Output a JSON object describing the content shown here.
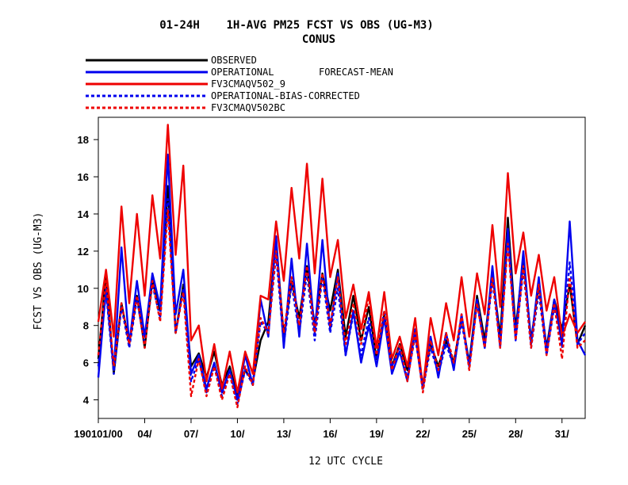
{
  "chart_data": {
    "type": "line",
    "title": "01-24H    1H-AVG PM25 FCST VS OBS (UG-M3)",
    "subtitle": "CONUS",
    "xlabel": "12 UTC CYCLE",
    "ylabel": "FCST VS OBS (UG-M3)",
    "legend_note": "FORECAST-MEAN",
    "legend_position": "top-left",
    "grid": false,
    "xlim": [
      1,
      32.5
    ],
    "ylim": [
      3,
      19.2
    ],
    "yticks": [
      4,
      6,
      8,
      10,
      12,
      14,
      16,
      18
    ],
    "xticks": [
      {
        "x": 1,
        "label": "190101/00"
      },
      {
        "x": 4,
        "label": "04/"
      },
      {
        "x": 7,
        "label": "07/"
      },
      {
        "x": 10,
        "label": "10/"
      },
      {
        "x": 13,
        "label": "13/"
      },
      {
        "x": 16,
        "label": "16/"
      },
      {
        "x": 19,
        "label": "19/"
      },
      {
        "x": 22,
        "label": "22/"
      },
      {
        "x": 25,
        "label": "25/"
      },
      {
        "x": 28,
        "label": "28/"
      },
      {
        "x": 31,
        "label": "31/"
      }
    ],
    "series": [
      {
        "name": "OBSERVED",
        "color": "#000000",
        "dash": "solid",
        "x": [
          1,
          1.5,
          2,
          2.5,
          3,
          3.5,
          4,
          4.5,
          5,
          5.5,
          6,
          6.5,
          7,
          7.5,
          8,
          8.5,
          9,
          9.5,
          10,
          10.5,
          11,
          11.5,
          12,
          12.5,
          13,
          13.5,
          14,
          14.5,
          15,
          15.5,
          16,
          16.5,
          17,
          17.5,
          18,
          18.5,
          19,
          19.5,
          20,
          20.5,
          21,
          21.5,
          22,
          22.5,
          23,
          23.5,
          24,
          24.5,
          25,
          25.5,
          26,
          26.5,
          27,
          27.5,
          28,
          28.5,
          29,
          29.5,
          30,
          30.5,
          31,
          31.5,
          32,
          32.5
        ],
        "y": [
          6.2,
          10.8,
          5.4,
          9.2,
          7.0,
          9.6,
          6.8,
          10.5,
          8.8,
          15.5,
          7.6,
          10.2,
          5.8,
          6.5,
          5.2,
          6.6,
          4.8,
          5.8,
          4.2,
          5.6,
          5.0,
          7.2,
          8.2,
          12.6,
          7.4,
          10.4,
          8.4,
          11.2,
          8.0,
          10.8,
          8.8,
          11.0,
          7.4,
          9.6,
          7.2,
          9.0,
          6.2,
          8.6,
          5.8,
          7.0,
          5.6,
          7.6,
          4.8,
          7.0,
          5.8,
          7.2,
          6.0,
          8.4,
          6.0,
          9.6,
          7.2,
          10.8,
          7.4,
          13.8,
          7.8,
          11.6,
          7.2,
          10.2,
          6.8,
          9.4,
          7.8,
          10.2,
          7.0,
          8.0
        ]
      },
      {
        "name": "OPERATIONAL",
        "color": "#0000ee",
        "dash": "solid",
        "x": [
          1,
          1.5,
          2,
          2.5,
          3,
          3.5,
          4,
          4.5,
          5,
          5.5,
          6,
          6.5,
          7,
          7.5,
          8,
          8.5,
          9,
          9.5,
          10,
          10.5,
          11,
          11.5,
          12,
          12.5,
          13,
          13.5,
          14,
          14.5,
          15,
          15.5,
          16,
          16.5,
          17,
          17.5,
          18,
          18.5,
          19,
          19.5,
          20,
          20.5,
          21,
          21.5,
          22,
          22.5,
          23,
          23.5,
          24,
          24.5,
          25,
          25.5,
          26,
          26.5,
          27,
          27.5,
          28,
          28.5,
          29,
          29.5,
          30,
          30.5,
          31,
          31.5,
          32,
          32.5
        ],
        "y": [
          5.2,
          10.0,
          5.6,
          12.2,
          7.0,
          10.4,
          7.4,
          10.8,
          9.0,
          17.2,
          8.6,
          11.0,
          5.4,
          6.4,
          4.6,
          6.0,
          4.4,
          5.6,
          4.0,
          6.4,
          4.8,
          9.4,
          7.4,
          12.8,
          6.8,
          11.6,
          7.4,
          12.4,
          7.6,
          12.6,
          7.8,
          10.8,
          6.4,
          8.8,
          6.0,
          8.0,
          5.8,
          8.4,
          5.4,
          6.6,
          5.0,
          7.8,
          4.6,
          7.4,
          5.2,
          7.6,
          5.6,
          8.6,
          5.8,
          9.4,
          6.8,
          11.2,
          6.8,
          13.2,
          7.4,
          12.0,
          7.0,
          10.6,
          6.6,
          9.4,
          7.0,
          13.6,
          7.2,
          6.4
        ]
      },
      {
        "name": "FV3CMAQV502_9",
        "color": "#ee0000",
        "dash": "solid",
        "x": [
          1,
          1.5,
          2,
          2.5,
          3,
          3.5,
          4,
          4.5,
          5,
          5.5,
          6,
          6.5,
          7,
          7.5,
          8,
          8.5,
          9,
          9.5,
          10,
          10.5,
          11,
          11.5,
          12,
          12.5,
          13,
          13.5,
          14,
          14.5,
          15,
          15.5,
          16,
          16.5,
          17,
          17.5,
          18,
          18.5,
          19,
          19.5,
          20,
          20.5,
          21,
          21.5,
          22,
          22.5,
          23,
          23.5,
          24,
          24.5,
          25,
          25.5,
          26,
          26.5,
          27,
          27.5,
          28,
          28.5,
          29,
          29.5,
          30,
          30.5,
          31,
          31.5,
          32,
          32.5
        ],
        "y": [
          8.2,
          11.0,
          7.4,
          14.4,
          9.2,
          14.0,
          9.6,
          15.0,
          11.6,
          18.8,
          11.8,
          16.6,
          7.2,
          8.0,
          5.0,
          7.0,
          4.6,
          6.6,
          4.4,
          6.6,
          5.4,
          9.6,
          9.4,
          13.6,
          10.4,
          15.4,
          11.6,
          16.7,
          10.8,
          15.9,
          10.6,
          12.6,
          8.4,
          10.2,
          7.8,
          9.8,
          6.8,
          9.8,
          6.2,
          7.4,
          5.8,
          8.4,
          4.6,
          8.4,
          6.4,
          9.2,
          7.2,
          10.6,
          7.4,
          10.8,
          8.6,
          13.4,
          9.0,
          16.2,
          10.8,
          13.0,
          9.6,
          11.8,
          8.8,
          10.6,
          7.4,
          8.6,
          7.6,
          8.2
        ]
      },
      {
        "name": "OPERATIONAL-BIAS-CORRECTED",
        "color": "#0000ee",
        "dash": "dashed",
        "x": [
          1,
          1.5,
          2,
          2.5,
          3,
          3.5,
          4,
          4.5,
          5,
          5.5,
          6,
          6.5,
          7,
          7.5,
          8,
          8.5,
          9,
          9.5,
          10,
          10.5,
          11,
          11.5,
          12,
          12.5,
          13,
          13.5,
          14,
          14.5,
          15,
          15.5,
          16,
          16.5,
          17,
          17.5,
          18,
          18.5,
          19,
          19.5,
          20,
          20.5,
          21,
          21.5,
          22,
          22.5,
          23,
          23.5,
          24,
          24.5,
          25,
          25.5,
          26,
          26.5,
          27,
          27.5,
          28,
          28.5,
          29,
          29.5,
          30,
          30.5,
          31,
          31.5,
          32,
          32.5
        ],
        "y": [
          5.8,
          9.8,
          5.4,
          9.0,
          6.8,
          9.4,
          7.0,
          10.2,
          8.4,
          14.8,
          7.6,
          10.0,
          5.0,
          6.2,
          4.4,
          5.8,
          4.2,
          5.4,
          3.8,
          5.6,
          4.8,
          8.2,
          7.6,
          11.8,
          7.0,
          10.2,
          7.6,
          10.8,
          7.2,
          10.6,
          7.6,
          10.0,
          6.4,
          8.6,
          6.4,
          8.4,
          6.0,
          8.8,
          5.8,
          6.8,
          5.2,
          7.4,
          4.6,
          6.8,
          5.4,
          7.0,
          5.8,
          8.2,
          5.8,
          9.2,
          6.8,
          10.4,
          7.0,
          12.8,
          7.2,
          11.0,
          6.8,
          9.8,
          6.4,
          9.0,
          6.8,
          11.4,
          7.0,
          7.6
        ]
      },
      {
        "name": "FV3CMAQV502BC",
        "color": "#ee0000",
        "dash": "dashed",
        "x": [
          1,
          1.5,
          2,
          2.5,
          3,
          3.5,
          4,
          4.5,
          5,
          5.5,
          6,
          6.5,
          7,
          7.5,
          8,
          8.5,
          9,
          9.5,
          10,
          10.5,
          11,
          11.5,
          12,
          12.5,
          13,
          13.5,
          14,
          14.5,
          15,
          15.5,
          16,
          16.5,
          17,
          17.5,
          18,
          18.5,
          19,
          19.5,
          20,
          20.5,
          21,
          21.5,
          22,
          22.5,
          23,
          23.5,
          24,
          24.5,
          25,
          25.5,
          26,
          26.5,
          27,
          27.5,
          28,
          28.5,
          29,
          29.5,
          30,
          30.5,
          31,
          31.5,
          32,
          32.5
        ],
        "y": [
          6.4,
          10.4,
          5.8,
          9.2,
          7.0,
          9.6,
          6.8,
          10.4,
          8.2,
          14.2,
          7.6,
          9.8,
          4.2,
          6.2,
          4.2,
          5.8,
          4.0,
          5.4,
          3.6,
          5.8,
          4.8,
          8.4,
          7.6,
          12.0,
          7.6,
          10.6,
          8.0,
          11.2,
          7.6,
          10.8,
          8.0,
          10.6,
          7.0,
          9.2,
          7.0,
          9.6,
          6.4,
          8.8,
          5.6,
          7.0,
          5.0,
          7.6,
          4.4,
          7.2,
          5.6,
          7.6,
          6.0,
          8.6,
          5.6,
          9.2,
          6.8,
          10.6,
          6.8,
          12.4,
          7.2,
          11.2,
          6.8,
          10.2,
          6.4,
          9.2,
          6.2,
          10.6,
          6.8,
          7.2
        ]
      }
    ]
  }
}
